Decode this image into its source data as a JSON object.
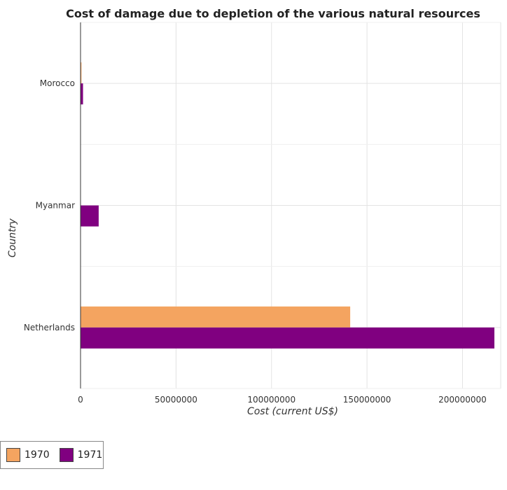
{
  "title": "Cost of damage due to depletion of the various natural resources",
  "colors": {
    "1970": "#f4a460",
    "1971": "#800080"
  },
  "legend": [
    {
      "name": "1970",
      "color": "#f4a460"
    },
    {
      "name": "1971",
      "color": "#800080"
    }
  ],
  "chart_data": {
    "type": "bar",
    "orientation": "horizontal",
    "title": "Cost of damage due to depletion of the various natural resources",
    "xlabel": "Cost (current US$)",
    "ylabel": "Country",
    "xlim": [
      0,
      220000000
    ],
    "xticks": [
      0,
      50000000,
      100000000,
      150000000,
      200000000
    ],
    "xtick_labels": [
      "0",
      "50000000",
      "100000000",
      "150000000",
      "200000000"
    ],
    "grid": true,
    "legend_position": "bottom-left",
    "categories": [
      "Morocco",
      "Myanmar",
      "Netherlands"
    ],
    "series": [
      {
        "name": "1970",
        "values": [
          500000,
          20000,
          141200000
        ]
      },
      {
        "name": "1971",
        "values": [
          1300000,
          9500000,
          216700000
        ]
      }
    ]
  }
}
